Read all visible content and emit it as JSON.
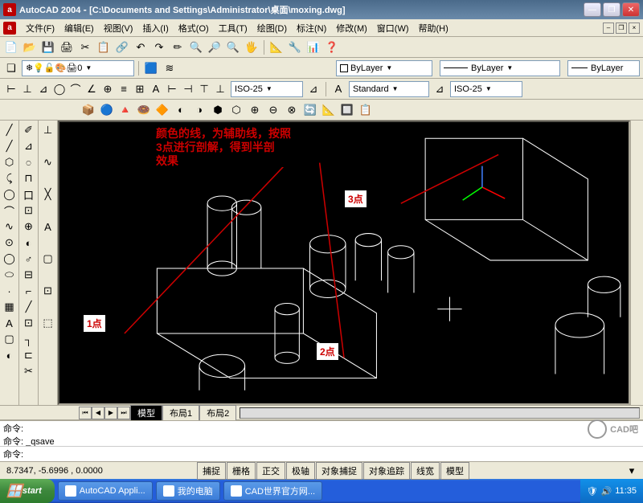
{
  "titlebar": {
    "app": "AutoCAD 2004",
    "path": "[C:\\Documents and Settings\\Administrator\\桌面\\moxing.dwg]",
    "logo": "a"
  },
  "menu": [
    "文件(F)",
    "编辑(E)",
    "视图(V)",
    "插入(I)",
    "格式(O)",
    "工具(T)",
    "绘图(D)",
    "标注(N)",
    "修改(M)",
    "窗口(W)",
    "帮助(H)"
  ],
  "toolbar1_icons": [
    "📄",
    "📂",
    "💾",
    "🖨",
    "✂",
    "📋",
    "🔗",
    "↶",
    "↷",
    "✏",
    "🔍",
    "🔎",
    "🔍",
    "🖐",
    "",
    "📐",
    "🔧",
    "📊",
    "❓"
  ],
  "layer_row": {
    "layer_icons": [
      "❄",
      "💡",
      "🔓",
      "🎨",
      "🖨"
    ],
    "layer_sel": "0",
    "bylayer1": "ByLayer",
    "bylayer2": "ByLayer",
    "bylayer3": "ByLayer"
  },
  "dim_row": {
    "icons1": [
      "⊢",
      "⊥",
      "⊿",
      "◯",
      "⌒",
      "∠",
      "⊕",
      "≡",
      "⊞",
      "A",
      "⊢",
      "⊣",
      "⊤",
      "⊥"
    ],
    "dimstyle": "ISO-25",
    "textstyle": "Standard",
    "dimstyle2": "ISO-25"
  },
  "solids_icons": [
    "📦",
    "🔵",
    "🔺",
    "🍩",
    "🔶",
    "◐",
    "◑",
    "⬢",
    "⬡",
    "⊕",
    "⊖",
    "⊗",
    "🔄",
    "📐",
    "🔲",
    "📋"
  ],
  "left_col1": [
    "╱",
    "╱",
    "⬡",
    "⤹",
    "◯",
    "⌒",
    "∿",
    "⊙",
    "◯",
    "⬭",
    "·",
    "▦",
    "A",
    "▢",
    "◐"
  ],
  "left_col2": [
    "✐",
    "⊿",
    "೦",
    "⊓",
    "口",
    "⊡",
    "⊕",
    "◐",
    "♂",
    "⊟",
    "⌐",
    "╱",
    "⊡",
    "┐",
    "⊏",
    "✂"
  ],
  "left_col3": [
    "⊥",
    "",
    "∿",
    "",
    "╳",
    "",
    "A",
    "",
    "▢",
    "",
    "⊡",
    "",
    "⬚"
  ],
  "annotations": {
    "main": "颜色的线，为辅助线，按照\n3点进行剖解，得到半剖\n效果",
    "p1": "1点",
    "p2": "2点",
    "p3": "3点"
  },
  "tabs": [
    "模型",
    "布局1",
    "布局2"
  ],
  "cmd": {
    "hist1": "命令:",
    "hist2": "命令: _qsave",
    "prompt": "命令:"
  },
  "status": {
    "coords": "8.7347, -5.6996 , 0.0000",
    "buttons": [
      "捕捉",
      "栅格",
      "正交",
      "极轴",
      "对象捕捉",
      "对象追踪",
      "线宽",
      "模型"
    ]
  },
  "taskbar": {
    "start": "start",
    "tasks": [
      "AutoCAD Appli...",
      "我的电脑",
      "CAD世界官方网..."
    ],
    "time": "11:35"
  },
  "watermark": "CAD吧",
  "colors": {
    "draw": "#ffffff",
    "anno": "#cc0000",
    "ucs_x": "#ff0000",
    "ucs_y": "#00ff00",
    "ucs_z": "#4080ff"
  }
}
